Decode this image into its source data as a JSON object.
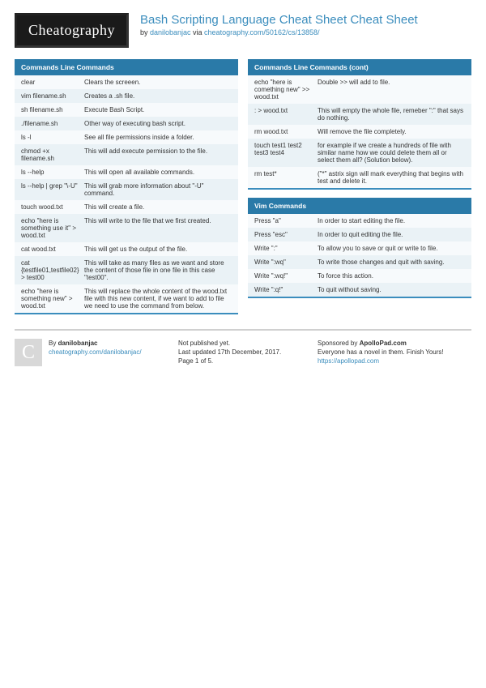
{
  "logo": "Cheatography",
  "title": "Bash Scripting Language Cheat Sheet Cheat Sheet",
  "byline_prefix": "by ",
  "author": "danilobanjac",
  "byline_mid": " via ",
  "source": "cheatography.com/50162/cs/13858/",
  "colors": {
    "header_bg": "#2a7aa8",
    "link": "#3b8dbd",
    "row_alt": "#eaf2f6",
    "row": "#f7fafc",
    "border": "#3b8dbd"
  },
  "blocks": {
    "cmd1": {
      "title": "Commands Line Commands",
      "rows": [
        {
          "c": "clear",
          "d": "Clears the screeen."
        },
        {
          "c": "vim filename.sh",
          "d": "Creates a .sh file."
        },
        {
          "c": "sh filename.sh",
          "d": "Execute Bash Script."
        },
        {
          "c": "./filename.sh",
          "d": "Other way of executing bash script."
        },
        {
          "c": "ls -l",
          "d": "See all file permissions inside a folder."
        },
        {
          "c": "chmod +x filename.sh",
          "d": "This will add execute permission to the file."
        },
        {
          "c": "ls --help",
          "d": "This will open all available commands."
        },
        {
          "c": "ls --help | grep \"\\-U\"",
          "d": "This will grab more information about \"-U\" command."
        },
        {
          "c": "touch wood.txt",
          "d": "This will create a file."
        },
        {
          "c": "echo \"here is something use it\" > wood.txt",
          "d": "This will write to the file that we first created."
        },
        {
          "c": "cat wood.txt",
          "d": "This will get us the output of the file."
        },
        {
          "c": "cat {testfile01,testfile02} > test00",
          "d": "This will take as many files as we want and store the content of those file in one file in this case \"test00\"."
        },
        {
          "c": "echo \"here is something new\" > wood.txt",
          "d": "This will replace the whole content of the wood.txt file with this new content, if we want to add to file we need to use the command from below."
        }
      ]
    },
    "cmd2": {
      "title": "Commands Line Commands (cont)",
      "rows": [
        {
          "c": "echo \"here is comething new\" >> wood.txt",
          "d": "Double >> will add to file."
        },
        {
          "c": ": > wood.txt",
          "d": "This will empty the whole file, remeber \":\" that says do nothing."
        },
        {
          "c": "rm wood.txt",
          "d": "Will remove the file completely."
        },
        {
          "c": "touch test1 test2 test3 test4",
          "d": "for example if we create a hundreds of file with similar name how we could delete them all or select them all? (Solution below)."
        },
        {
          "c": "rm test*",
          "d": "(\"*\" astrix sign will mark everything that begins with test and delete it."
        }
      ]
    },
    "vim": {
      "title": "Vim Commands",
      "rows": [
        {
          "c": "Press \"a\"",
          "d": "In order to start editing the file."
        },
        {
          "c": "Press \"esc\"",
          "d": "In order to quit editing the file."
        },
        {
          "c": "Write \":\"",
          "d": "To allow you to save or quit or write to file."
        },
        {
          "c": "Write \":wq\"",
          "d": "To write those changes and quit with saving."
        },
        {
          "c": "Write \":wq!\"",
          "d": "To force this action."
        },
        {
          "c": "Write \":q!\"",
          "d": "To quit without saving."
        }
      ]
    }
  },
  "footer": {
    "avatar_letter": "C",
    "by_label": "By ",
    "author": "danilobanjac",
    "author_url": "cheatography.com/danilobanjac/",
    "pub_status": "Not published yet.",
    "updated": "Last updated 17th December, 2017.",
    "page": "Page 1 of 5.",
    "sponsor_label": "Sponsored by ",
    "sponsor": "ApolloPad.com",
    "sponsor_tag": "Everyone has a novel in them. Finish Yours!",
    "sponsor_url": "https://apollopad.com"
  }
}
